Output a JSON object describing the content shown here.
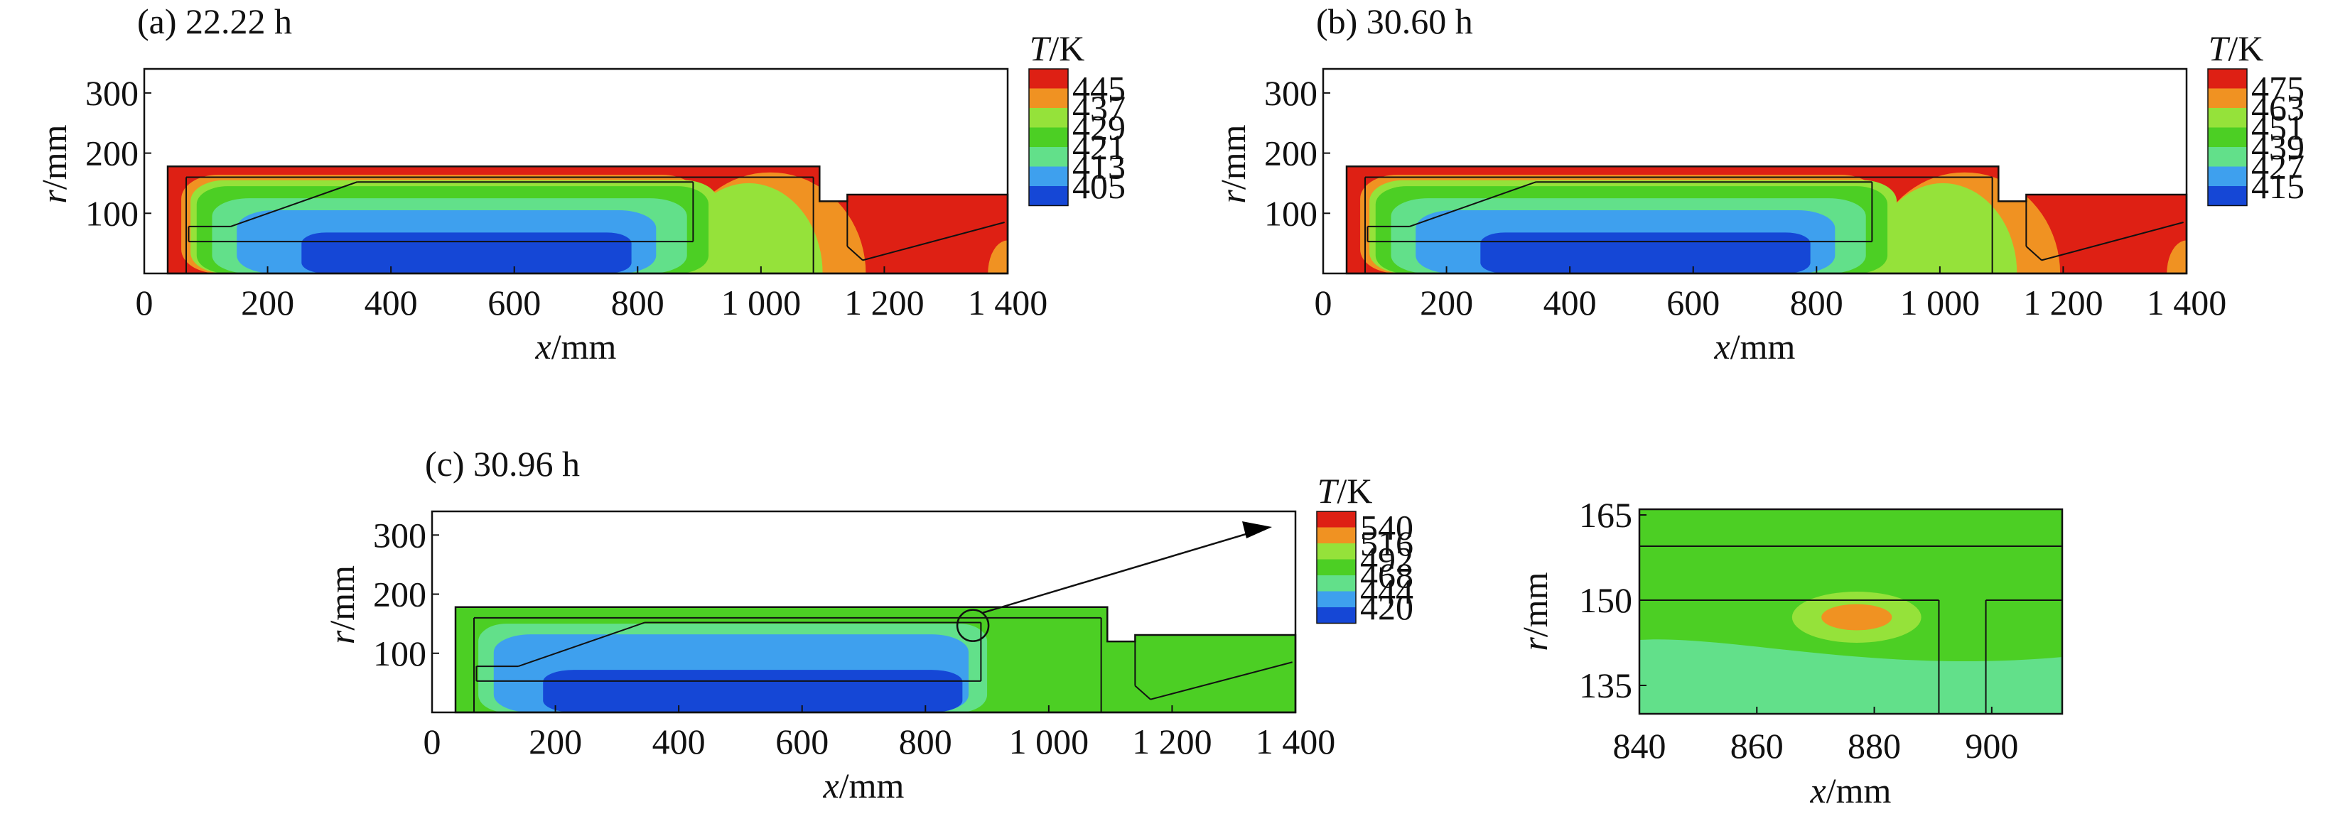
{
  "figure": {
    "contour_colors": [
      "#1547d6",
      "#3ea0ee",
      "#62e08a",
      "#4ccf24",
      "#95e23a",
      "#f09222",
      "#de2014"
    ],
    "outline_color": "#111111"
  },
  "chart_data": [
    {
      "type": "heatmap",
      "panel": "(a) 22.22 h",
      "xlabel": "x/mm",
      "ylabel": "r/mm",
      "xlim": [
        0,
        1400
      ],
      "ylim": [
        0,
        340
      ],
      "x_ticks": [
        0,
        200,
        400,
        600,
        800,
        1000,
        1200,
        1400
      ],
      "x_tick_labels": [
        "0",
        "200",
        "400",
        "600",
        "800",
        "1 000",
        "1 200",
        "1 400"
      ],
      "y_ticks": [
        100,
        200,
        300
      ],
      "y_tick_labels": [
        "100",
        "200",
        "300"
      ],
      "legend_title": "T/K",
      "legend_values": [
        "445",
        "437",
        "429",
        "421",
        "413",
        "405"
      ],
      "temperature_range": [
        405,
        445
      ],
      "grid": false
    },
    {
      "type": "heatmap",
      "panel": "(b) 30.60 h",
      "xlabel": "x/mm",
      "ylabel": "r/mm",
      "xlim": [
        0,
        1400
      ],
      "ylim": [
        0,
        340
      ],
      "x_ticks": [
        0,
        200,
        400,
        600,
        800,
        1000,
        1200,
        1400
      ],
      "x_tick_labels": [
        "0",
        "200",
        "400",
        "600",
        "800",
        "1 000",
        "1 200",
        "1 400"
      ],
      "y_ticks": [
        100,
        200,
        300
      ],
      "y_tick_labels": [
        "100",
        "200",
        "300"
      ],
      "legend_title": "T/K",
      "legend_values": [
        "475",
        "463",
        "451",
        "439",
        "427",
        "415"
      ],
      "temperature_range": [
        415,
        475
      ],
      "grid": false
    },
    {
      "type": "heatmap",
      "panel": "(c) 30.96 h",
      "xlabel": "x/mm",
      "ylabel": "r/mm",
      "xlim": [
        0,
        1400
      ],
      "ylim": [
        0,
        340
      ],
      "x_ticks": [
        0,
        200,
        400,
        600,
        800,
        1000,
        1200,
        1400
      ],
      "x_tick_labels": [
        "0",
        "200",
        "400",
        "600",
        "800",
        "1 000",
        "1 200",
        "1 400"
      ],
      "y_ticks": [
        100,
        200,
        300
      ],
      "y_tick_labels": [
        "100",
        "200",
        "300"
      ],
      "legend_title": "T/K",
      "legend_values": [
        "540",
        "516",
        "492",
        "468",
        "444",
        "420"
      ],
      "temperature_range": [
        420,
        540
      ],
      "hot_spot": {
        "x": 877,
        "r": 147
      },
      "grid": false
    },
    {
      "type": "heatmap",
      "panel": "zoom of (c)",
      "xlabel": "x/mm",
      "ylabel": "r/mm",
      "xlim": [
        840,
        912
      ],
      "ylim": [
        130,
        166
      ],
      "x_ticks": [
        840,
        860,
        880,
        900
      ],
      "x_tick_labels": [
        "840",
        "860",
        "880",
        "900"
      ],
      "y_ticks": [
        135,
        150,
        165
      ],
      "y_tick_labels": [
        "135",
        "150",
        "165"
      ],
      "hot_spot": {
        "x": 877,
        "r": 147
      },
      "grid": false
    }
  ]
}
